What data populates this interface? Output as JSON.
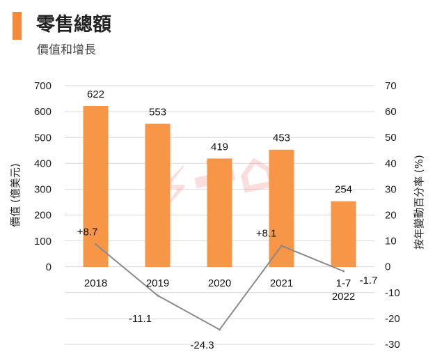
{
  "colors": {
    "bar": "#f79646",
    "accent": "#f58a3a",
    "line": "#8a8a8a",
    "grid": "#d9d9d9",
    "watermark": "#f6b9b9"
  },
  "chart_data": {
    "type": "bar+line",
    "title": "零售總額",
    "subtitle": "價值和增長",
    "ylabel": "價值 (億美元)",
    "y2label": "按年變動百分率 (%)",
    "categories": [
      "2018",
      "2019",
      "2020",
      "2021",
      "1-7\n2022"
    ],
    "category_lines": [
      [
        "2018"
      ],
      [
        "2019"
      ],
      [
        "2020"
      ],
      [
        "2021"
      ],
      [
        "1-7",
        "2022"
      ]
    ],
    "ylim": [
      0,
      700
    ],
    "yticks": [
      "0",
      "100",
      "200",
      "300",
      "400",
      "500",
      "600",
      "700"
    ],
    "y2lim": [
      -30,
      70
    ],
    "y2ticks": [
      "-30",
      "-20",
      "-10",
      "0",
      "10",
      "20",
      "30",
      "40",
      "50",
      "60",
      "70"
    ],
    "grid": true,
    "series": [
      {
        "kind": "bar",
        "axis": "left",
        "values": [
          622,
          553,
          419,
          453,
          254
        ],
        "labels": [
          "622",
          "553",
          "419",
          "453",
          "254"
        ]
      },
      {
        "kind": "line",
        "axis": "right",
        "values": [
          8.7,
          -11.1,
          -24.3,
          8.1,
          -1.7
        ],
        "labels": [
          "+8.7",
          "-11.1",
          "-24.3",
          "+8.1",
          "-1.7"
        ]
      }
    ]
  }
}
